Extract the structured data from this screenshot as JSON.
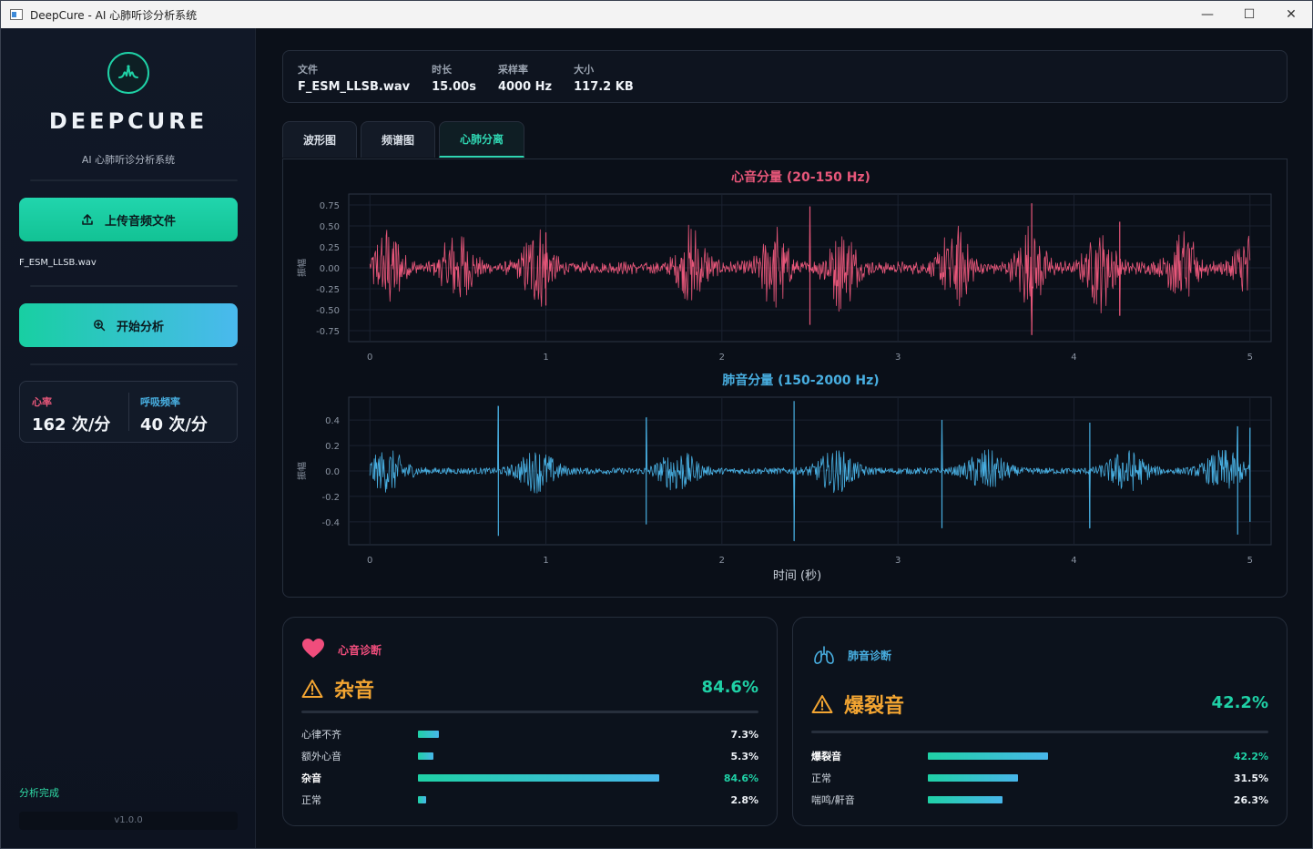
{
  "window": {
    "title": "DeepCure - AI 心肺听诊分析系统",
    "minimize": "—",
    "maximize": "☐",
    "close": "✕"
  },
  "sidebar": {
    "brand": "DEEPCURE",
    "subtitle": "AI 心肺听诊分析系统",
    "upload_label": "上传音频文件",
    "file_name": "F_ESM_LLSB.wav",
    "analyze_label": "开始分析",
    "vitals": {
      "heart_rate_label": "心率",
      "heart_rate_value": "162 次/分",
      "resp_rate_label": "呼吸频率",
      "resp_rate_value": "40 次/分"
    },
    "status": "分析完成",
    "version": "v1.0.0"
  },
  "file_info": [
    {
      "key": "文件",
      "value": "F_ESM_LLSB.wav"
    },
    {
      "key": "时长",
      "value": "15.00s"
    },
    {
      "key": "采样率",
      "value": "4000 Hz"
    },
    {
      "key": "大小",
      "value": "117.2 KB"
    }
  ],
  "tabs": [
    {
      "label": "波形图",
      "active": false
    },
    {
      "label": "频谱图",
      "active": false
    },
    {
      "label": "心肺分离",
      "active": true
    }
  ],
  "chart_data": [
    {
      "type": "line",
      "title": "心音分量 (20-150 Hz)",
      "ylabel": "振幅",
      "xlabel": "",
      "color": "#e8577a",
      "xlim": [
        -0.12,
        5.12
      ],
      "ylim": [
        -0.88,
        0.88
      ],
      "xticks": [
        "0",
        "1",
        "2",
        "3",
        "4",
        "5"
      ],
      "yticks": [
        "0.75",
        "0.50",
        "0.25",
        "0.00",
        "-0.25",
        "-0.50",
        "-0.75"
      ],
      "bursts": [
        0.1,
        0.5,
        0.95,
        1.83,
        2.3,
        2.68,
        3.32,
        3.75,
        4.15,
        4.62,
        5.0
      ],
      "spikes": [
        [
          2.5,
          0.73,
          -0.68
        ],
        [
          3.76,
          0.77,
          -0.8
        ],
        [
          1.0,
          0.42,
          -0.45
        ],
        [
          4.26,
          0.55,
          -0.57
        ]
      ]
    },
    {
      "type": "line",
      "title": "肺音分量 (150-2000 Hz)",
      "ylabel": "振幅",
      "xlabel": "时间 (秒)",
      "color": "#48aee0",
      "xlim": [
        -0.12,
        5.12
      ],
      "ylim": [
        -0.58,
        0.58
      ],
      "xticks": [
        "0",
        "1",
        "2",
        "3",
        "4",
        "5"
      ],
      "yticks": [
        "0.4",
        "0.2",
        "0.0",
        "-0.2",
        "-0.4"
      ],
      "bursts": [
        0.1,
        0.95,
        1.75,
        2.65,
        3.5,
        4.3,
        4.85
      ],
      "spikes": [
        [
          0.73,
          0.51,
          -0.51
        ],
        [
          1.57,
          0.42,
          -0.42
        ],
        [
          2.41,
          0.55,
          -0.55
        ],
        [
          3.25,
          0.4,
          -0.45
        ],
        [
          4.09,
          0.38,
          -0.45
        ],
        [
          4.93,
          0.35,
          -0.5
        ],
        [
          5.0,
          0.34,
          -0.4
        ]
      ]
    }
  ],
  "heart_card": {
    "title": "心音诊断",
    "diagnosis": "杂音",
    "confidence": "84.6%",
    "rows": [
      {
        "label": "心律不齐",
        "pct": 7.3,
        "value": "7.3%",
        "highlight": false
      },
      {
        "label": "额外心音",
        "pct": 5.3,
        "value": "5.3%",
        "highlight": false
      },
      {
        "label": "杂音",
        "pct": 84.6,
        "value": "84.6%",
        "highlight": true
      },
      {
        "label": "正常",
        "pct": 2.8,
        "value": "2.8%",
        "highlight": false
      }
    ]
  },
  "lung_card": {
    "title": "肺音诊断",
    "diagnosis": "爆裂音",
    "confidence": "42.2%",
    "rows": [
      {
        "label": "爆裂音",
        "pct": 42.2,
        "value": "42.2%",
        "highlight": true
      },
      {
        "label": "正常",
        "pct": 31.5,
        "value": "31.5%",
        "highlight": false
      },
      {
        "label": "喘鸣/鼾音",
        "pct": 26.3,
        "value": "26.3%",
        "highlight": false
      }
    ]
  },
  "colors": {
    "accent": "#1fd1a6",
    "heart": "#e8577a",
    "lung": "#48aee0",
    "warning": "#f3a532"
  }
}
